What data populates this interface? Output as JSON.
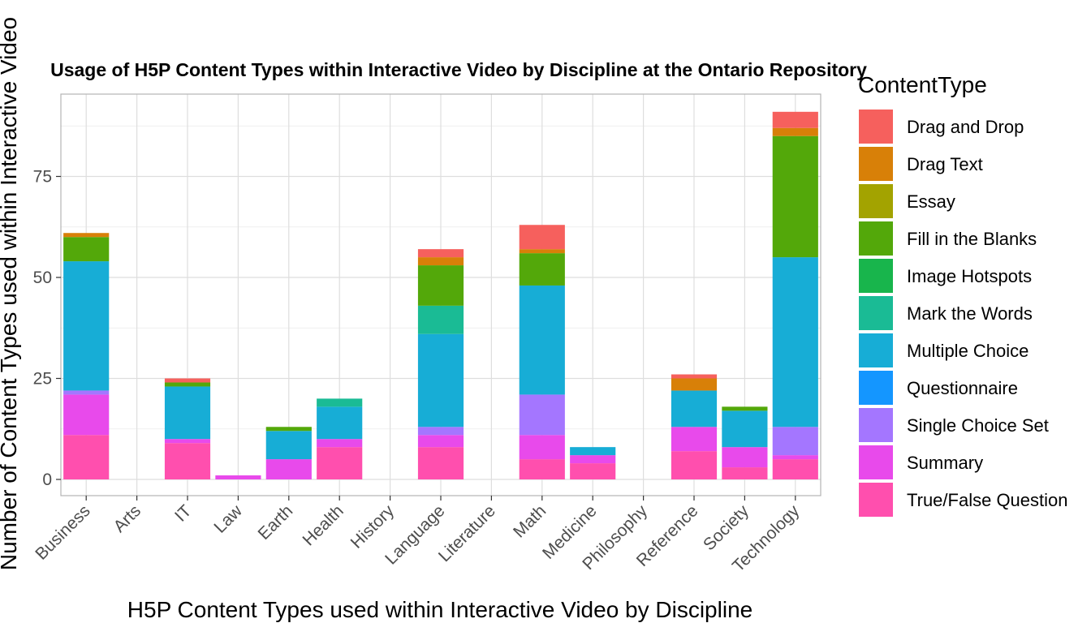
{
  "chart_data": {
    "type": "bar",
    "stacked": true,
    "title": "Usage of H5P Content Types within Interactive Video by Discipline at the Ontario Repository",
    "xlabel": "H5P Content Types used within Interactive Video by Discipline",
    "ylabel": "Number of Content Types used within Interactive Video",
    "ylim": [
      0,
      95
    ],
    "yticks": [
      0,
      25,
      50,
      75
    ],
    "grid": true,
    "legend_title": "ContentType",
    "legend_position": "right",
    "categories": [
      "Business",
      "Arts",
      "IT",
      "Law",
      "Earth",
      "Health",
      "History",
      "Language",
      "Literature",
      "Math",
      "Medicine",
      "Philosophy",
      "Reference",
      "Society",
      "Technology"
    ],
    "series": [
      {
        "name": "True/False Question",
        "color": "#FF4FAE",
        "values": [
          11,
          0,
          9,
          0,
          0,
          8,
          0,
          8,
          0,
          5,
          4,
          0,
          7,
          3,
          5
        ]
      },
      {
        "name": "Summary",
        "color": "#E84AEB",
        "values": [
          10,
          0,
          1,
          1,
          5,
          2,
          0,
          3,
          0,
          6,
          2,
          0,
          6,
          5,
          1
        ]
      },
      {
        "name": "Single Choice Set",
        "color": "#A476FF",
        "values": [
          1,
          0,
          0,
          0,
          0,
          0,
          0,
          2,
          0,
          10,
          0,
          0,
          0,
          0,
          7
        ]
      },
      {
        "name": "Questionnaire",
        "color": "#1496FF",
        "values": [
          0,
          0,
          0,
          0,
          0,
          0,
          0,
          0,
          0,
          0,
          0,
          0,
          0,
          0,
          0
        ]
      },
      {
        "name": "Multiple Choice",
        "color": "#17ADD6",
        "values": [
          32,
          0,
          13,
          0,
          7,
          8,
          0,
          23,
          0,
          27,
          2,
          0,
          9,
          9,
          42
        ]
      },
      {
        "name": "Mark the Words",
        "color": "#1ABB95",
        "values": [
          0,
          0,
          0,
          0,
          0,
          2,
          0,
          7,
          0,
          0,
          0,
          0,
          0,
          0,
          0
        ]
      },
      {
        "name": "Image Hotspots",
        "color": "#18B54C",
        "values": [
          0,
          0,
          0,
          0,
          0,
          0,
          0,
          0,
          0,
          0,
          0,
          0,
          0,
          0,
          0
        ]
      },
      {
        "name": "Fill in the Blanks",
        "color": "#53A80A",
        "values": [
          6,
          0,
          1,
          0,
          1,
          0,
          0,
          10,
          0,
          8,
          0,
          0,
          0,
          1,
          30
        ]
      },
      {
        "name": "Essay",
        "color": "#A3A300",
        "values": [
          0,
          0,
          0,
          0,
          0,
          0,
          0,
          0,
          0,
          0,
          0,
          0,
          0,
          0,
          0
        ]
      },
      {
        "name": "Drag Text",
        "color": "#D88008",
        "values": [
          1,
          0,
          0,
          0,
          0,
          0,
          0,
          2,
          0,
          1,
          0,
          0,
          3,
          0,
          2
        ]
      },
      {
        "name": "Drag and Drop",
        "color": "#F6605D",
        "values": [
          0,
          0,
          1,
          0,
          0,
          0,
          0,
          2,
          0,
          6,
          0,
          0,
          1,
          0,
          4
        ]
      }
    ],
    "legend_order": [
      "Drag and Drop",
      "Drag Text",
      "Essay",
      "Fill in the Blanks",
      "Image Hotspots",
      "Mark the Words",
      "Multiple Choice",
      "Questionnaire",
      "Single Choice Set",
      "Summary",
      "True/False Question"
    ]
  }
}
